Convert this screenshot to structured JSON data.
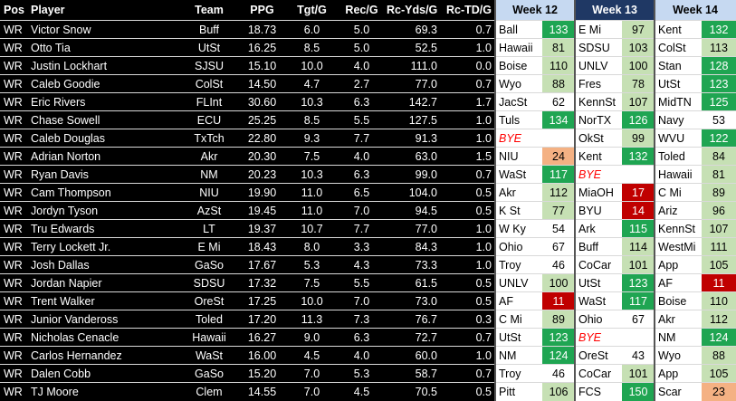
{
  "headers": {
    "pos": "Pos",
    "player": "Player",
    "team": "Team",
    "ppg": "PPG",
    "tgt": "Tgt/G",
    "rec": "Rec/G",
    "yds": "Rc-Yds/G",
    "td": "Rc-TD/G",
    "w12": "Week 12",
    "w13": "Week 13",
    "w14": "Week 14"
  },
  "colors": {
    "header_bg": "#000000",
    "week12_bg": "#c6d9f1",
    "week13_bg": "#1f3864",
    "week14_bg": "#c6d9f1",
    "row_bg": "#000000",
    "row_text": "#ffffff",
    "opp_bg": "#ffffff",
    "dark_green": "#1fa552",
    "light_green": "#c6e0b4",
    "dark_red": "#c00000",
    "light_red": "#f4b183",
    "bye": "#ff0000"
  },
  "rows": [
    {
      "pos": "WR",
      "player": "Victor Snow",
      "team": "Buff",
      "ppg": "18.73",
      "tgt": "6.0",
      "rec": "5.0",
      "yds": "69.3",
      "td": "0.7",
      "w12_opp": "Ball",
      "w12_val": "133",
      "w12_c": "dg",
      "w13_opp": "E Mi",
      "w13_val": "97",
      "w13_c": "lg",
      "w14_opp": "Kent",
      "w14_val": "132",
      "w14_c": "dg"
    },
    {
      "pos": "WR",
      "player": "Otto Tia",
      "team": "UtSt",
      "ppg": "16.25",
      "tgt": "8.5",
      "rec": "5.0",
      "yds": "52.5",
      "td": "1.0",
      "w12_opp": "Hawaii",
      "w12_val": "81",
      "w12_c": "lg",
      "w13_opp": "SDSU",
      "w13_val": "103",
      "w13_c": "lg",
      "w14_opp": "ColSt",
      "w14_val": "113",
      "w14_c": "lg"
    },
    {
      "pos": "WR",
      "player": "Justin Lockhart",
      "team": "SJSU",
      "ppg": "15.10",
      "tgt": "10.0",
      "rec": "4.0",
      "yds": "111.0",
      "td": "0.0",
      "w12_opp": "Boise",
      "w12_val": "110",
      "w12_c": "lg",
      "w13_opp": "UNLV",
      "w13_val": "100",
      "w13_c": "lg",
      "w14_opp": "Stan",
      "w14_val": "128",
      "w14_c": "dg"
    },
    {
      "pos": "WR",
      "player": "Caleb Goodie",
      "team": "ColSt",
      "ppg": "14.50",
      "tgt": "4.7",
      "rec": "2.7",
      "yds": "77.0",
      "td": "0.7",
      "w12_opp": "Wyo",
      "w12_val": "88",
      "w12_c": "lg",
      "w13_opp": "Fres",
      "w13_val": "78",
      "w13_c": "lg",
      "w14_opp": "UtSt",
      "w14_val": "123",
      "w14_c": "dg"
    },
    {
      "pos": "WR",
      "player": "Eric Rivers",
      "team": "FLInt",
      "ppg": "30.60",
      "tgt": "10.3",
      "rec": "6.3",
      "yds": "142.7",
      "td": "1.7",
      "w12_opp": "JacSt",
      "w12_val": "62",
      "w12_c": "w",
      "w13_opp": "KennSt",
      "w13_val": "107",
      "w13_c": "lg",
      "w14_opp": "MidTN",
      "w14_val": "125",
      "w14_c": "dg"
    },
    {
      "pos": "WR",
      "player": "Chase Sowell",
      "team": "ECU",
      "ppg": "25.25",
      "tgt": "8.5",
      "rec": "5.5",
      "yds": "127.5",
      "td": "1.0",
      "w12_opp": "Tuls",
      "w12_val": "134",
      "w12_c": "dg",
      "w13_opp": "NorTX",
      "w13_val": "126",
      "w13_c": "dg",
      "w14_opp": "Navy",
      "w14_val": "53",
      "w14_c": "w"
    },
    {
      "pos": "WR",
      "player": "Caleb Douglas",
      "team": "TxTch",
      "ppg": "22.80",
      "tgt": "9.3",
      "rec": "7.7",
      "yds": "91.3",
      "td": "1.0",
      "w12_opp": "BYE",
      "w12_val": "",
      "w12_c": "bye",
      "w13_opp": "OkSt",
      "w13_val": "99",
      "w13_c": "lg",
      "w14_opp": "WVU",
      "w14_val": "122",
      "w14_c": "dg"
    },
    {
      "pos": "WR",
      "player": "Adrian Norton",
      "team": "Akr",
      "ppg": "20.30",
      "tgt": "7.5",
      "rec": "4.0",
      "yds": "63.0",
      "td": "1.5",
      "w12_opp": "NIU",
      "w12_val": "24",
      "w12_c": "lr",
      "w13_opp": "Kent",
      "w13_val": "132",
      "w13_c": "dg",
      "w14_opp": "Toled",
      "w14_val": "84",
      "w14_c": "lg"
    },
    {
      "pos": "WR",
      "player": "Ryan Davis",
      "team": "NM",
      "ppg": "20.23",
      "tgt": "10.3",
      "rec": "6.3",
      "yds": "99.0",
      "td": "0.7",
      "w12_opp": "WaSt",
      "w12_val": "117",
      "w12_c": "dg",
      "w13_opp": "BYE",
      "w13_val": "",
      "w13_c": "bye",
      "w14_opp": "Hawaii",
      "w14_val": "81",
      "w14_c": "lg"
    },
    {
      "pos": "WR",
      "player": "Cam Thompson",
      "team": "NIU",
      "ppg": "19.90",
      "tgt": "11.0",
      "rec": "6.5",
      "yds": "104.0",
      "td": "0.5",
      "w12_opp": "Akr",
      "w12_val": "112",
      "w12_c": "lg",
      "w13_opp": "MiaOH",
      "w13_val": "17",
      "w13_c": "dr",
      "w14_opp": "C Mi",
      "w14_val": "89",
      "w14_c": "lg"
    },
    {
      "pos": "WR",
      "player": "Jordyn Tyson",
      "team": "AzSt",
      "ppg": "19.45",
      "tgt": "11.0",
      "rec": "7.0",
      "yds": "94.5",
      "td": "0.5",
      "w12_opp": "K St",
      "w12_val": "77",
      "w12_c": "lg",
      "w13_opp": "BYU",
      "w13_val": "14",
      "w13_c": "dr",
      "w14_opp": "Ariz",
      "w14_val": "96",
      "w14_c": "lg"
    },
    {
      "pos": "WR",
      "player": "Tru Edwards",
      "team": "LT",
      "ppg": "19.37",
      "tgt": "10.7",
      "rec": "7.7",
      "yds": "77.0",
      "td": "1.0",
      "w12_opp": "W Ky",
      "w12_val": "54",
      "w12_c": "w",
      "w13_opp": "Ark",
      "w13_val": "115",
      "w13_c": "dg",
      "w14_opp": "KennSt",
      "w14_val": "107",
      "w14_c": "lg"
    },
    {
      "pos": "WR",
      "player": "Terry Lockett Jr.",
      "team": "E Mi",
      "ppg": "18.43",
      "tgt": "8.0",
      "rec": "3.3",
      "yds": "84.3",
      "td": "1.0",
      "w12_opp": "Ohio",
      "w12_val": "67",
      "w12_c": "w",
      "w13_opp": "Buff",
      "w13_val": "114",
      "w13_c": "lg",
      "w14_opp": "WestMi",
      "w14_val": "111",
      "w14_c": "lg"
    },
    {
      "pos": "WR",
      "player": "Josh Dallas",
      "team": "GaSo",
      "ppg": "17.67",
      "tgt": "5.3",
      "rec": "4.3",
      "yds": "73.3",
      "td": "1.0",
      "w12_opp": "Troy",
      "w12_val": "46",
      "w12_c": "w",
      "w13_opp": "CoCar",
      "w13_val": "101",
      "w13_c": "lg",
      "w14_opp": "App",
      "w14_val": "105",
      "w14_c": "lg"
    },
    {
      "pos": "WR",
      "player": "Jordan Napier",
      "team": "SDSU",
      "ppg": "17.32",
      "tgt": "7.5",
      "rec": "5.5",
      "yds": "61.5",
      "td": "0.5",
      "w12_opp": "UNLV",
      "w12_val": "100",
      "w12_c": "lg",
      "w13_opp": "UtSt",
      "w13_val": "123",
      "w13_c": "dg",
      "w14_opp": "AF",
      "w14_val": "11",
      "w14_c": "dr"
    },
    {
      "pos": "WR",
      "player": "Trent Walker",
      "team": "OreSt",
      "ppg": "17.25",
      "tgt": "10.0",
      "rec": "7.0",
      "yds": "73.0",
      "td": "0.5",
      "w12_opp": "AF",
      "w12_val": "11",
      "w12_c": "dr",
      "w13_opp": "WaSt",
      "w13_val": "117",
      "w13_c": "dg",
      "w14_opp": "Boise",
      "w14_val": "110",
      "w14_c": "lg"
    },
    {
      "pos": "WR",
      "player": "Junior Vandeross",
      "team": "Toled",
      "ppg": "17.20",
      "tgt": "11.3",
      "rec": "7.3",
      "yds": "76.7",
      "td": "0.3",
      "w12_opp": "C Mi",
      "w12_val": "89",
      "w12_c": "lg",
      "w13_opp": "Ohio",
      "w13_val": "67",
      "w13_c": "w",
      "w14_opp": "Akr",
      "w14_val": "112",
      "w14_c": "lg"
    },
    {
      "pos": "WR",
      "player": "Nicholas Cenacle",
      "team": "Hawaii",
      "ppg": "16.27",
      "tgt": "9.0",
      "rec": "6.3",
      "yds": "72.7",
      "td": "0.7",
      "w12_opp": "UtSt",
      "w12_val": "123",
      "w12_c": "dg",
      "w13_opp": "BYE",
      "w13_val": "",
      "w13_c": "bye",
      "w14_opp": "NM",
      "w14_val": "124",
      "w14_c": "dg"
    },
    {
      "pos": "WR",
      "player": "Carlos Hernandez",
      "team": "WaSt",
      "ppg": "16.00",
      "tgt": "4.5",
      "rec": "4.0",
      "yds": "60.0",
      "td": "1.0",
      "w12_opp": "NM",
      "w12_val": "124",
      "w12_c": "dg",
      "w13_opp": "OreSt",
      "w13_val": "43",
      "w13_c": "w",
      "w14_opp": "Wyo",
      "w14_val": "88",
      "w14_c": "lg"
    },
    {
      "pos": "WR",
      "player": "Dalen Cobb",
      "team": "GaSo",
      "ppg": "15.20",
      "tgt": "7.0",
      "rec": "5.3",
      "yds": "58.7",
      "td": "0.7",
      "w12_opp": "Troy",
      "w12_val": "46",
      "w12_c": "w",
      "w13_opp": "CoCar",
      "w13_val": "101",
      "w13_c": "lg",
      "w14_opp": "App",
      "w14_val": "105",
      "w14_c": "lg"
    },
    {
      "pos": "WR",
      "player": "TJ Moore",
      "team": "Clem",
      "ppg": "14.55",
      "tgt": "7.0",
      "rec": "4.5",
      "yds": "70.5",
      "td": "0.5",
      "w12_opp": "Pitt",
      "w12_val": "106",
      "w12_c": "lg",
      "w13_opp": "FCS",
      "w13_val": "150",
      "w13_c": "dg",
      "w14_opp": "Scar",
      "w14_val": "23",
      "w14_c": "lr"
    }
  ]
}
